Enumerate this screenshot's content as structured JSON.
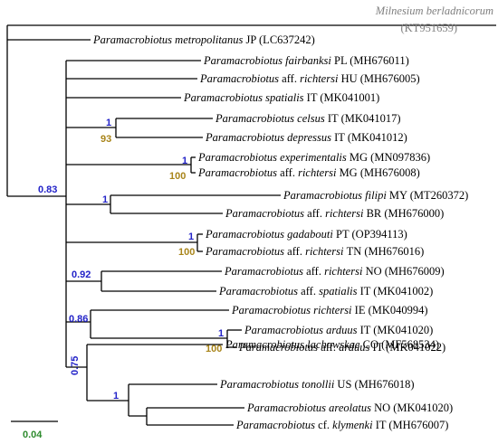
{
  "outgroup": {
    "genus": "Milnesium",
    "species": "berladnicorum",
    "accession": "(KT951659)"
  },
  "taxa": [
    {
      "genus": "Paramacrobiotus",
      "aff": "",
      "epithet": "metropolitanus",
      "country": "JP",
      "accession": "(LC637242)"
    },
    {
      "genus": "Paramacrobiotus",
      "aff": "",
      "epithet": "fairbanksi",
      "country": "PL",
      "accession": "(MH676011)"
    },
    {
      "genus": "Paramacrobiotus",
      "aff": "aff.",
      "epithet": "richtersi",
      "country": "HU",
      "accession": "(MH676005)"
    },
    {
      "genus": "Paramacrobiotus",
      "aff": "",
      "epithet": "spatialis",
      "country": "IT",
      "accession": "(MK041001)"
    },
    {
      "genus": "Paramacrobiotus",
      "aff": "",
      "epithet": "celsus",
      "country": "IT",
      "accession": "(MK041017)"
    },
    {
      "genus": "Paramacrobiotus",
      "aff": "",
      "epithet": "depressus",
      "country": "IT",
      "accession": "(MK041012)"
    },
    {
      "genus": "Paramacrobiotus",
      "aff": "",
      "epithet": "experimentalis",
      "country": "MG",
      "accession": "(MN097836)"
    },
    {
      "genus": "Paramacrobiotus",
      "aff": "aff.",
      "epithet": "richtersi",
      "country": "MG",
      "accession": "(MH676008)"
    },
    {
      "genus": "Paramacrobiotus",
      "aff": "",
      "epithet": "filipi",
      "country": "MY",
      "accession": "(MT260372)"
    },
    {
      "genus": "Paramacrobiotus",
      "aff": "aff.",
      "epithet": "richtersi",
      "country": "BR",
      "accession": "(MH676000)"
    },
    {
      "genus": "Paramacrobiotus",
      "aff": "",
      "epithet": "gadabouti",
      "country": "PT",
      "accession": "(OP394113)"
    },
    {
      "genus": "Paramacrobiotus",
      "aff": "aff.",
      "epithet": "richtersi",
      "country": "TN",
      "accession": "(MH676016)"
    },
    {
      "genus": "Paramacrobiotus",
      "aff": "aff.",
      "epithet": "richtersi",
      "country": "NO",
      "accession": "(MH676009)"
    },
    {
      "genus": "Paramacrobiotus",
      "aff": "aff.",
      "epithet": "spatialis",
      "country": "IT",
      "accession": "(MK041002)"
    },
    {
      "genus": "Paramacrobiotus",
      "aff": "",
      "epithet": "richtersi",
      "country": "IE",
      "accession": "(MK040994)"
    },
    {
      "genus": "Paramacrobiotus",
      "aff": "",
      "epithet": "arduus",
      "country": "IT",
      "accession": "(MK041020)"
    },
    {
      "genus": "Paramacrobiotus",
      "aff": "aff.",
      "epithet": "arduus",
      "country": "IT",
      "accession": "(MK041022)"
    },
    {
      "genus": "Paramacrobiotus",
      "aff": "",
      "epithet": "lachowskae",
      "country": "CO",
      "accession": "(MF568534)"
    },
    {
      "genus": "Paramacrobiotus",
      "aff": "",
      "epithet": "tonollii",
      "country": "US",
      "accession": "(MH676018)"
    },
    {
      "genus": "Paramacrobiotus",
      "aff": "",
      "epithet": "areolatus",
      "country": "NO",
      "accession": "(MK041020)"
    },
    {
      "genus": "Paramacrobiotus",
      "aff": "cf.",
      "epithet": "klymenki",
      "country": "IT",
      "accession": "(MH676007)"
    }
  ],
  "support": [
    {
      "id": "paramacrobiotus-clade",
      "value": "0.83",
      "type": "posterior"
    },
    {
      "id": "celsus-depressus",
      "value": "1",
      "type": "posterior"
    },
    {
      "id": "celsus-depressus",
      "value": "93",
      "type": "bootstrap"
    },
    {
      "id": "experimentalis-mg",
      "value": "1",
      "type": "posterior"
    },
    {
      "id": "experimentalis-mg",
      "value": "100",
      "type": "bootstrap"
    },
    {
      "id": "filipi-br",
      "value": "1",
      "type": "posterior"
    },
    {
      "id": "gadabouti-tn",
      "value": "1",
      "type": "posterior"
    },
    {
      "id": "gadabouti-tn",
      "value": "100",
      "type": "bootstrap"
    },
    {
      "id": "norway-spatialis",
      "value": "0.92",
      "type": "posterior"
    },
    {
      "id": "ireland-arduus",
      "value": "0.86",
      "type": "posterior"
    },
    {
      "id": "arduus-pair",
      "value": "1",
      "type": "posterior"
    },
    {
      "id": "arduus-pair",
      "value": "100",
      "type": "bootstrap"
    },
    {
      "id": "lachowskae-clade",
      "value": "0.75",
      "type": "posterior"
    },
    {
      "id": "tonollii-clade",
      "value": "1",
      "type": "posterior"
    }
  ],
  "scale_bar": {
    "label": "0.04"
  },
  "colors": {
    "branch": "#000000",
    "outgroup_text": "#7f7f7f",
    "posterior": "#2323c8",
    "bootstrap": "#a88419",
    "scale_label": "#2e8b2e"
  }
}
